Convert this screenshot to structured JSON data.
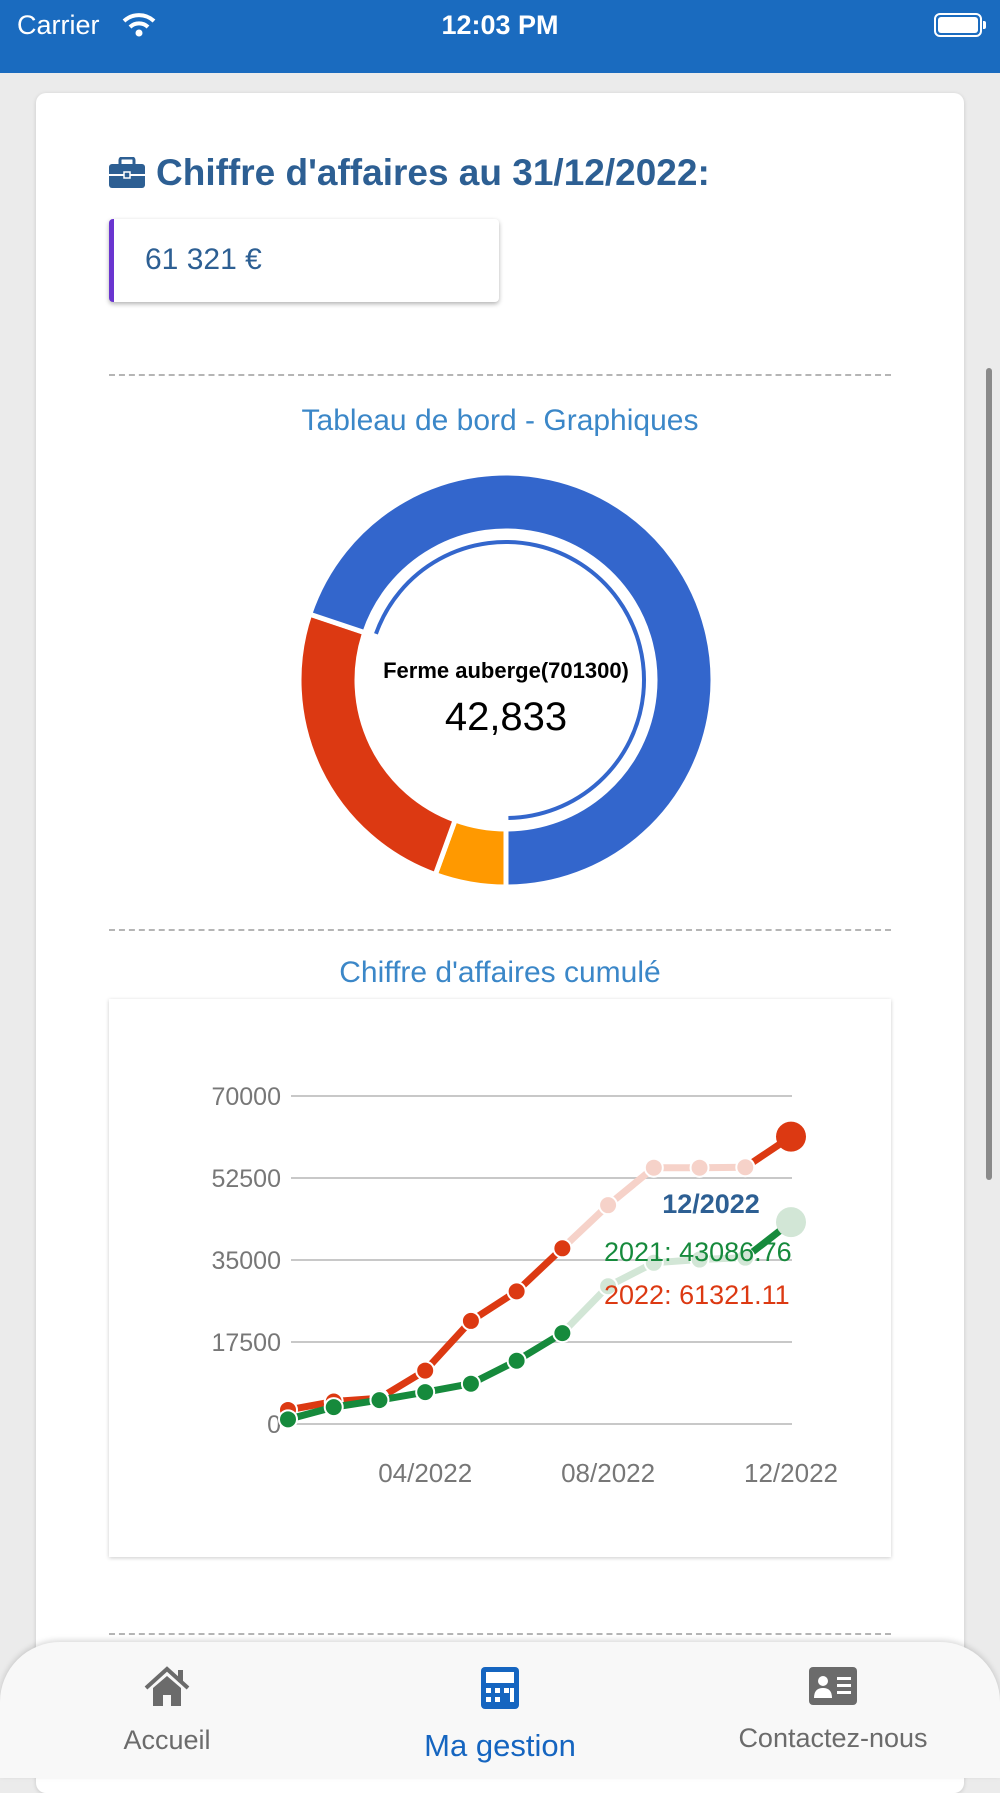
{
  "status_bar": {
    "carrier": "Carrier",
    "time": "12:03 PM"
  },
  "header": {
    "title": "Chiffre d'affaires au 31/12/2022:",
    "icon": "briefcase-icon",
    "value": "61 321 €"
  },
  "dashboard": {
    "title": "Tableau de bord - Graphiques"
  },
  "cumulative": {
    "title": "Chiffre d'affaires cumulé"
  },
  "colors": {
    "primary": "#1a6bbf",
    "title": "#2d5f93",
    "accent": "#6a35d0",
    "blue": "#3366cc",
    "red": "#dc3912",
    "orange": "#ff9900",
    "green": "#168a3c"
  },
  "chart_data": [
    {
      "type": "pie",
      "donut": true,
      "slices": [
        {
          "value": 3400,
          "color": "#ff9900"
        },
        {
          "value": 15088,
          "color": "#dc3912"
        },
        {
          "name": "Ferme auberge(701300)",
          "value": 42833,
          "color": "#3366cc",
          "selected": true
        }
      ],
      "center_label": "Ferme auberge(701300)",
      "center_value": "42,833"
    },
    {
      "type": "line",
      "title": "Chiffre d'affaires cumulé",
      "x": [
        "01/2022",
        "02/2022",
        "03/2022",
        "04/2022",
        "05/2022",
        "06/2022",
        "07/2022",
        "08/2022",
        "09/2022",
        "10/2022",
        "11/2022",
        "12/2022"
      ],
      "xticks": [
        "04/2022",
        "08/2022",
        "12/2022"
      ],
      "yticks": [
        "70000",
        "52500",
        "35000",
        "17500",
        "0"
      ],
      "ylim": [
        0,
        70000
      ],
      "series": [
        {
          "name": "2022",
          "color": "#dc3912",
          "values": [
            3000,
            4800,
            5500,
            11400,
            22000,
            28300,
            37500,
            46700,
            54700,
            54700,
            54800,
            61321.11
          ]
        },
        {
          "name": "2021",
          "color": "#168a3c",
          "values": [
            1000,
            3600,
            5100,
            6800,
            8600,
            13500,
            19400,
            29400,
            34400,
            35100,
            35500,
            43086.76
          ]
        }
      ],
      "tooltip": {
        "title": "12/2022",
        "lines": [
          {
            "text": "2021: 43086.76",
            "color": "#168a3c"
          },
          {
            "text": "2022: 61321.11",
            "color": "#dc3912"
          }
        ]
      }
    }
  ],
  "nav": [
    {
      "label": "Accueil",
      "icon": "home-icon"
    },
    {
      "label": "Ma gestion",
      "icon": "calculator-icon",
      "active": true
    },
    {
      "label": "Contactez-nous",
      "icon": "contact-card-icon"
    }
  ]
}
